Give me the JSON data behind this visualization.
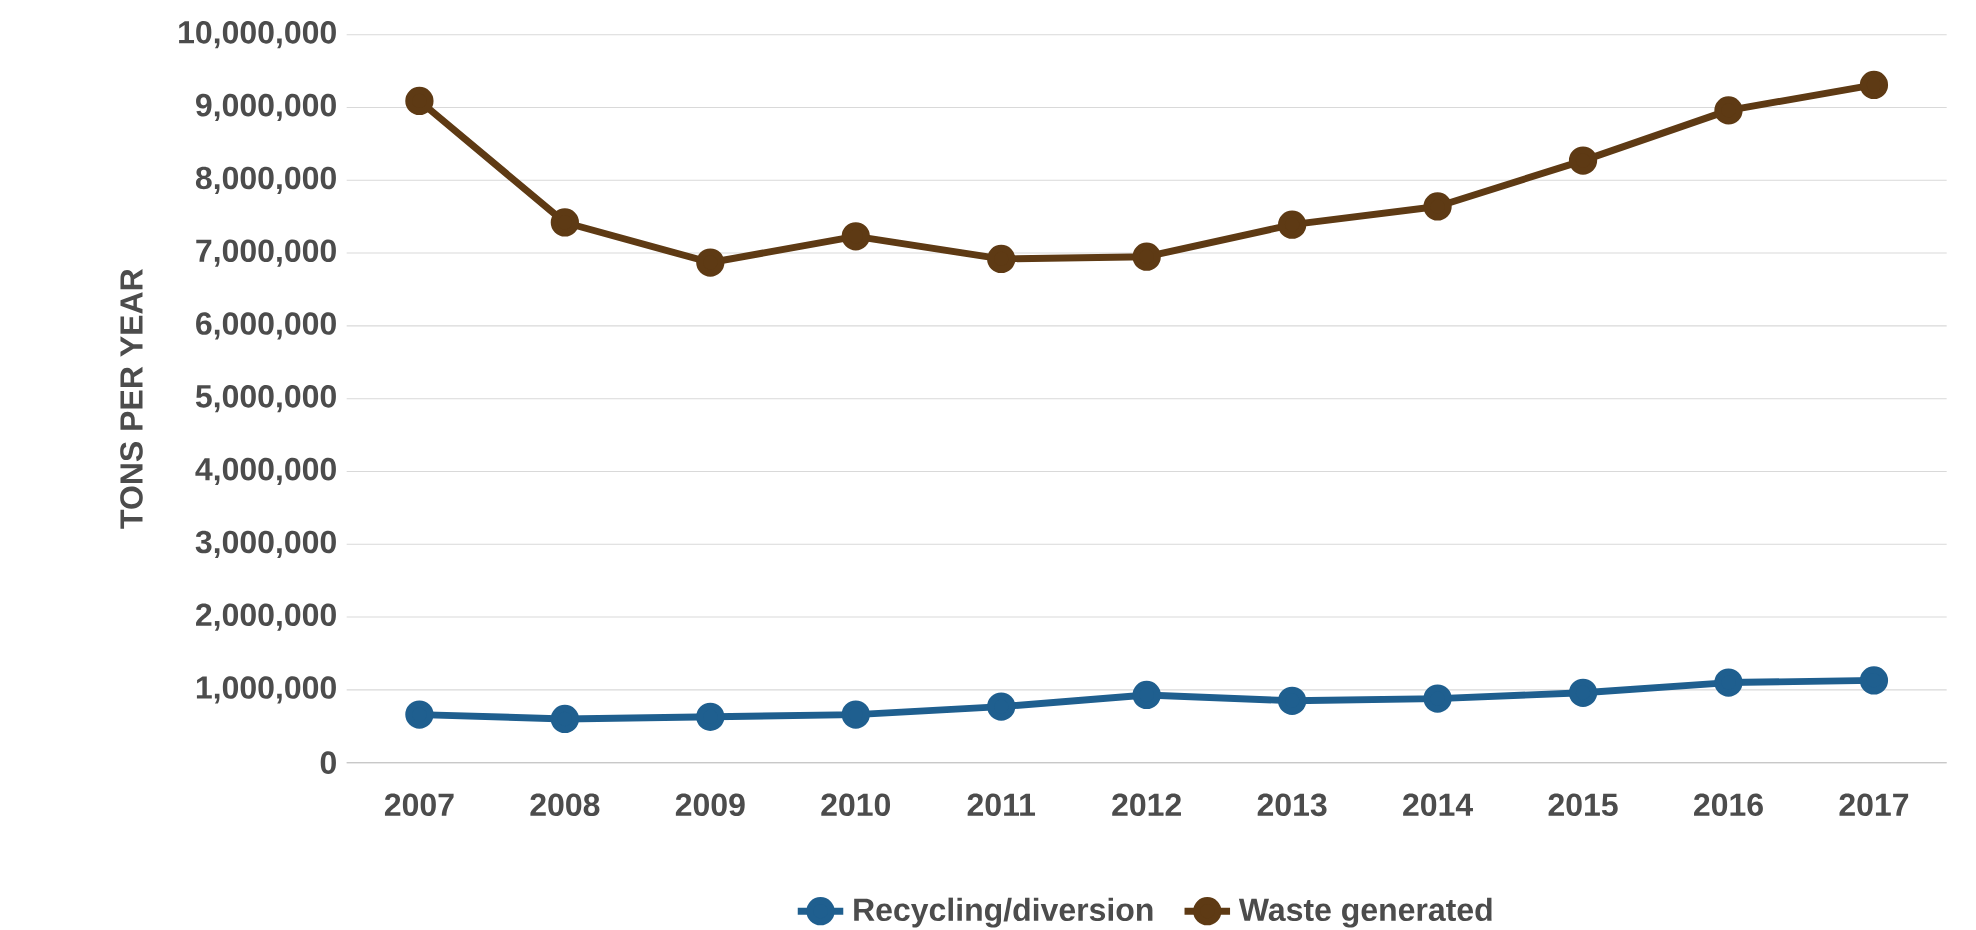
{
  "chart_data": {
    "type": "line",
    "ylabel": "TONS PER YEAR",
    "categories": [
      "2007",
      "2008",
      "2009",
      "2010",
      "2011",
      "2012",
      "2013",
      "2014",
      "2015",
      "2016",
      "2017"
    ],
    "series": [
      {
        "name": "Recycling/diversion",
        "color": "#1f5f8f",
        "values": [
          660000,
          600000,
          630000,
          660000,
          770000,
          930000,
          850000,
          880000,
          960000,
          1100000,
          1130000
        ]
      },
      {
        "name": "Waste generated",
        "color": "#5e3a14",
        "values": [
          9090000,
          7420000,
          6870000,
          7230000,
          6920000,
          6950000,
          7390000,
          7640000,
          8270000,
          8960000,
          9310000
        ]
      }
    ],
    "ylim": [
      0,
      10000000
    ],
    "yticks": [
      {
        "value": 0,
        "label": "0"
      },
      {
        "value": 1000000,
        "label": "1,000,000"
      },
      {
        "value": 2000000,
        "label": "2,000,000"
      },
      {
        "value": 3000000,
        "label": "3,000,000"
      },
      {
        "value": 4000000,
        "label": "4,000,000"
      },
      {
        "value": 5000000,
        "label": "5,000,000"
      },
      {
        "value": 6000000,
        "label": "6,000,000"
      },
      {
        "value": 7000000,
        "label": "7,000,000"
      },
      {
        "value": 8000000,
        "label": "8,000,000"
      },
      {
        "value": 9000000,
        "label": "9,000,000"
      },
      {
        "value": 10000000,
        "label": "10,000,000"
      }
    ],
    "grid": "y",
    "legend": "bottom",
    "marker": "circle",
    "line_style": "solid"
  }
}
